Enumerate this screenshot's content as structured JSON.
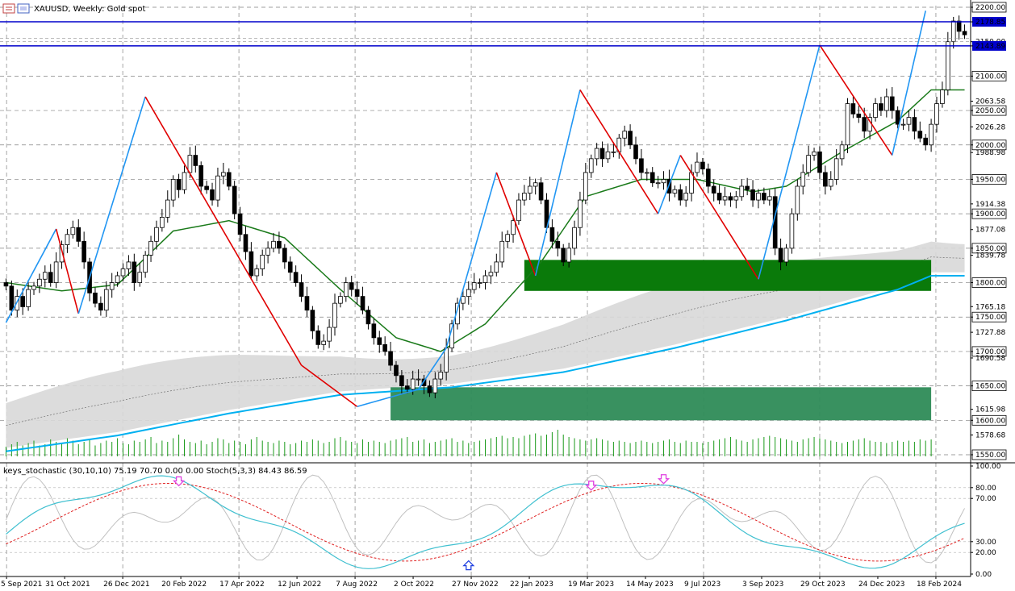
{
  "window": {
    "title": "XAUUSD, Weekly:  Gold spot",
    "indicator_title": "keys_stochastic (30,10,10) 75.19 70.70 0.00 0.00 Stoch(5,3,3) 84.43 86.59"
  },
  "colors": {
    "bull_candle": "#ffffff",
    "bear_candle": "#000000",
    "zigzag_up": "#2196f3",
    "zigzag_down": "#e00000",
    "ma_green": "#1a7a1a",
    "ma_cyan": "#00b0f0",
    "cloud": "#d8d8d8",
    "zone_green": "#0a7a0a",
    "zone_green_light": "#2e8b57",
    "hline_blue": "#0000cc",
    "stoch_main": "#40c0d0",
    "stoch_signal": "#e02020",
    "stoch_fast": "#c0c0c0",
    "arrow_down": "#e040e0",
    "arrow_up": "#2040e0"
  },
  "price_axis": {
    "labels": [
      "2200.00",
      "2178.85",
      "2150.00",
      "2143.89",
      "2100.00",
      "2063.58",
      "2050.00",
      "2026.28",
      "2000.00",
      "1988.98",
      "1950.00",
      "1914.38",
      "1900.00",
      "1877.08",
      "1850.00",
      "1839.78",
      "1800.00",
      "1765.18",
      "1750.00",
      "1727.88",
      "1700.00",
      "1690.58",
      "1650.00",
      "1615.98",
      "1600.00",
      "1578.68",
      "1550.00"
    ],
    "boxed": [
      "2200.00",
      "2100.00",
      "2050.00",
      "2000.00",
      "1950.00",
      "1900.00",
      "1850.00",
      "1800.00",
      "1750.00",
      "1700.00",
      "1650.00",
      "1600.00",
      "1550.00"
    ],
    "highlighted": [
      "2178.85",
      "2143.89"
    ]
  },
  "hlines": [
    2178.85,
    2143.89
  ],
  "indicator_axis": {
    "labels": [
      "100.00",
      "80.00",
      "70.00",
      "30.00",
      "20.00",
      "0.00"
    ]
  },
  "time_axis": {
    "labels": [
      "5 Sep 2021",
      "31 Oct 2021",
      "26 Dec 2021",
      "20 Feb 2022",
      "17 Apr 2022",
      "12 Jun 2022",
      "7 Aug 2022",
      "2 Oct 2022",
      "27 Nov 2022",
      "22 Jan 2023",
      "19 Mar 2023",
      "14 May 2023",
      "9 Jul 2023",
      "3 Sep 2023",
      "29 Oct 2023",
      "24 Dec 2023",
      "18 Feb 2024"
    ]
  },
  "chart_data": {
    "type": "candlestick",
    "symbol": "XAUUSD",
    "timeframe": "Weekly",
    "ylim": [
      1550,
      2200
    ],
    "closes": [
      1795,
      1760,
      1780,
      1765,
      1790,
      1795,
      1805,
      1815,
      1800,
      1830,
      1855,
      1870,
      1880,
      1860,
      1830,
      1785,
      1770,
      1760,
      1790,
      1800,
      1810,
      1820,
      1830,
      1800,
      1815,
      1840,
      1860,
      1880,
      1895,
      1920,
      1950,
      1935,
      1960,
      1985,
      1970,
      1940,
      1935,
      1920,
      1955,
      1960,
      1940,
      1900,
      1870,
      1845,
      1810,
      1820,
      1840,
      1850,
      1860,
      1850,
      1830,
      1815,
      1800,
      1780,
      1760,
      1730,
      1710,
      1715,
      1735,
      1770,
      1780,
      1800,
      1790,
      1780,
      1760,
      1740,
      1720,
      1710,
      1700,
      1680,
      1665,
      1650,
      1645,
      1660,
      1660,
      1650,
      1640,
      1660,
      1670,
      1705,
      1740,
      1770,
      1780,
      1790,
      1800,
      1800,
      1810,
      1815,
      1830,
      1860,
      1870,
      1890,
      1920,
      1930,
      1940,
      1945,
      1920,
      1880,
      1860,
      1850,
      1830,
      1850,
      1880,
      1920,
      1960,
      1980,
      1995,
      1980,
      1990,
      1990,
      2010,
      2020,
      2000,
      1980,
      1960,
      1960,
      1945,
      1945,
      1950,
      1930,
      1935,
      1920,
      1930,
      1960,
      1975,
      1965,
      1940,
      1930,
      1920,
      1925,
      1920,
      1925,
      1940,
      1935,
      1920,
      1930,
      1920,
      1925,
      1850,
      1830,
      1850,
      1900,
      1940,
      1960,
      1985,
      1990,
      1960,
      1940,
      1950,
      1980,
      2000,
      2060,
      2045,
      2040,
      2020,
      2040,
      2060,
      2050,
      2070,
      2050,
      2030,
      2030,
      2040,
      2020,
      2010,
      2000,
      2030,
      2060,
      2080,
      2150,
      2180,
      2165,
      2160
    ],
    "zigzag": [
      [
        0,
        1742
      ],
      [
        9,
        1878
      ],
      [
        13,
        1755
      ],
      [
        25,
        2070
      ],
      [
        53,
        1680
      ],
      [
        63,
        1620
      ],
      [
        74,
        1645
      ],
      [
        79,
        1705
      ],
      [
        88,
        1960
      ],
      [
        95,
        1810
      ],
      [
        103,
        2080
      ],
      [
        117,
        1900
      ],
      [
        121,
        1985
      ],
      [
        135,
        1805
      ],
      [
        146,
        2145
      ],
      [
        159,
        1985
      ],
      [
        165,
        2195
      ]
    ],
    "ma_green": [
      [
        0,
        1800
      ],
      [
        10,
        1788
      ],
      [
        20,
        1797
      ],
      [
        30,
        1875
      ],
      [
        40,
        1890
      ],
      [
        50,
        1865
      ],
      [
        60,
        1790
      ],
      [
        70,
        1720
      ],
      [
        78,
        1700
      ],
      [
        86,
        1740
      ],
      [
        96,
        1830
      ],
      [
        104,
        1925
      ],
      [
        114,
        1950
      ],
      [
        124,
        1950
      ],
      [
        134,
        1932
      ],
      [
        140,
        1940
      ],
      [
        150,
        1990
      ],
      [
        160,
        2035
      ],
      [
        166,
        2080
      ]
    ],
    "ma_cyan": [
      [
        0,
        1555
      ],
      [
        20,
        1578
      ],
      [
        40,
        1610
      ],
      [
        60,
        1637
      ],
      [
        80,
        1648
      ],
      [
        100,
        1670
      ],
      [
        120,
        1705
      ],
      [
        140,
        1745
      ],
      [
        160,
        1790
      ],
      [
        166,
        1810
      ]
    ],
    "zones": [
      {
        "from_index": 93,
        "to_index": 166,
        "top": 1833,
        "bottom": 1788
      },
      {
        "from_index": 69,
        "to_index": 166,
        "top": 1648,
        "bottom": 1600
      }
    ],
    "volume": [
      8,
      10,
      12,
      9,
      11,
      13,
      9,
      10,
      14,
      12,
      11,
      15,
      13,
      10,
      12,
      14,
      9,
      11,
      13,
      12,
      15,
      11,
      10,
      13,
      12,
      14,
      16,
      11,
      13,
      12,
      15,
      18,
      14,
      12,
      11,
      13,
      10,
      12,
      15,
      14,
      11,
      13,
      12,
      10,
      14,
      16,
      13,
      12,
      11,
      13,
      12,
      10,
      11,
      13,
      12,
      14,
      13,
      11,
      12,
      15,
      16,
      13,
      12,
      11,
      14,
      12,
      13,
      12,
      11,
      13,
      14,
      15,
      16,
      12,
      13,
      14,
      11,
      12,
      13,
      14,
      15,
      12,
      13,
      11,
      12,
      13,
      14,
      15,
      16,
      17,
      15,
      16,
      15,
      17,
      18,
      19,
      17,
      18,
      20,
      22,
      18,
      16,
      15,
      14,
      13,
      14,
      15,
      14,
      13,
      12,
      13,
      12,
      11,
      12,
      13,
      12,
      11,
      12,
      13,
      14,
      12,
      11,
      13,
      12,
      12,
      11,
      12,
      13,
      14,
      15,
      16,
      14,
      13,
      12,
      14,
      15,
      16,
      17,
      16,
      15,
      14,
      13,
      12,
      14,
      15,
      16,
      15,
      14,
      13,
      12,
      11,
      12,
      13,
      14,
      15,
      13,
      12,
      12,
      11,
      12,
      13,
      12,
      13,
      12,
      14,
      13,
      14
    ]
  }
}
